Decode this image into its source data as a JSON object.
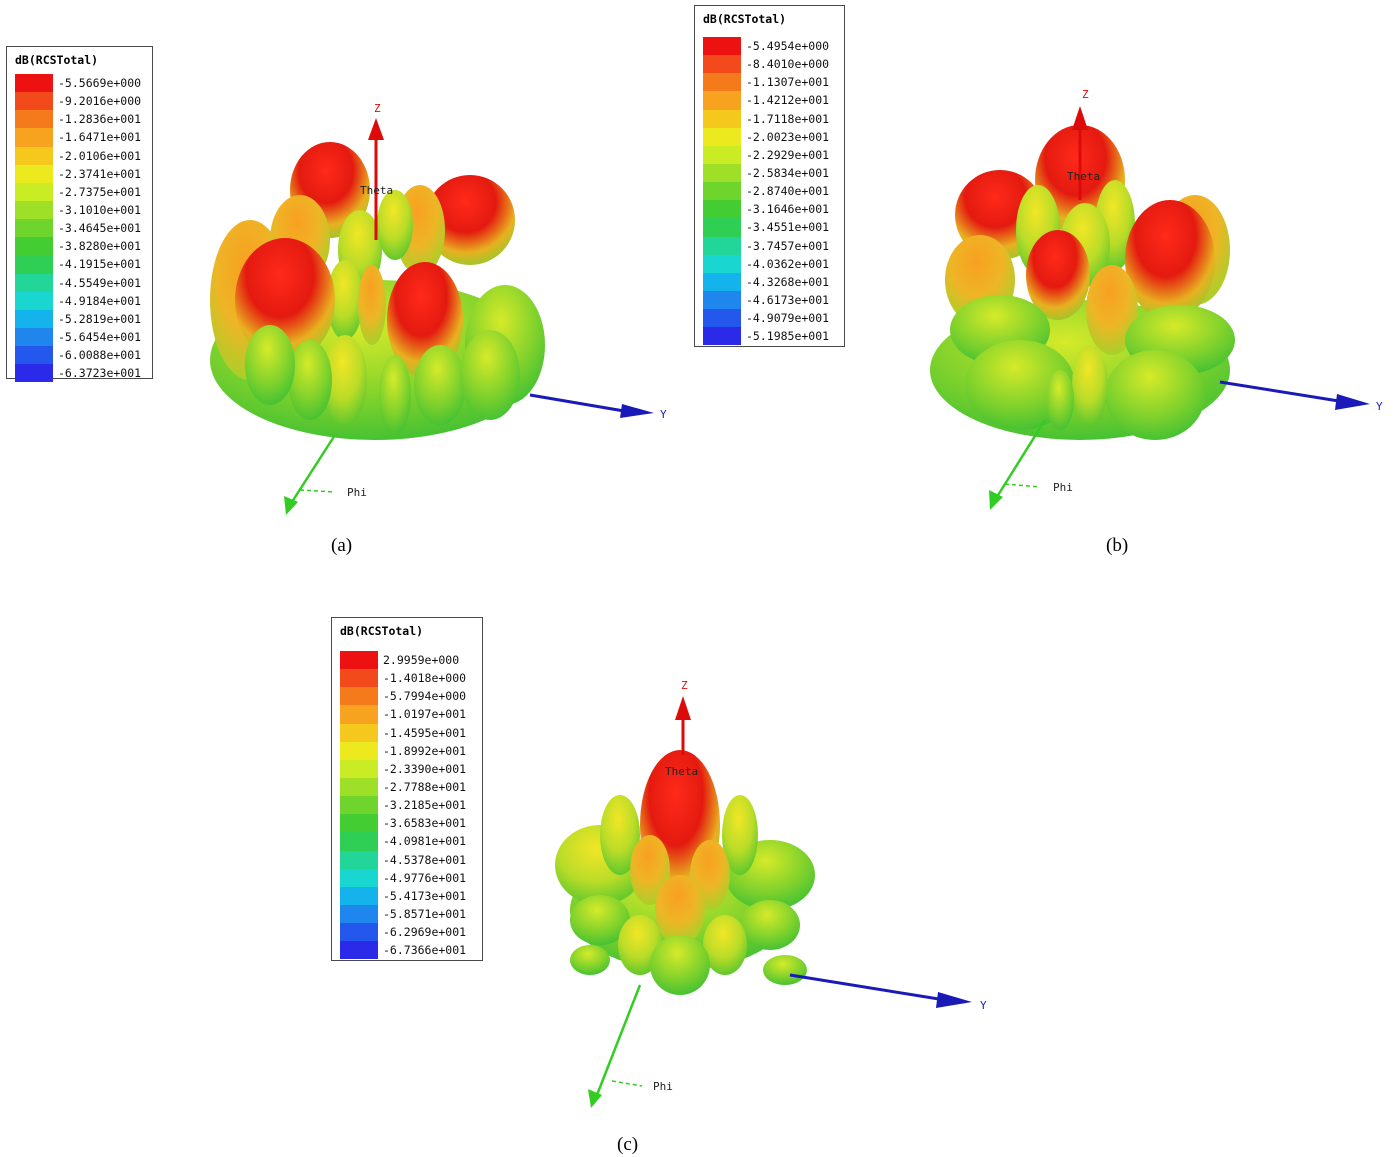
{
  "chart_data": [
    {
      "type": "3d-radiation-pattern",
      "panel": "(a)",
      "legend_title": "dB(RCSTotal)",
      "colorscale_values": [
        "-5.5669e+000",
        "-9.2016e+000",
        "-1.2836e+001",
        "-1.6471e+001",
        "-2.0106e+001",
        "-2.3741e+001",
        "-2.7375e+001",
        "-3.1010e+001",
        "-3.4645e+001",
        "-3.8280e+001",
        "-4.1915e+001",
        "-4.5549e+001",
        "-4.9184e+001",
        "-5.2819e+001",
        "-5.6454e+001",
        "-6.0088e+001",
        "-6.3723e+001"
      ],
      "axes": {
        "z": "Z",
        "y": "Y",
        "theta": "Theta",
        "phi": "Phi"
      }
    },
    {
      "type": "3d-radiation-pattern",
      "panel": "(b)",
      "legend_title": "dB(RCSTotal)",
      "colorscale_values": [
        "-5.4954e+000",
        "-8.4010e+000",
        "-1.1307e+001",
        "-1.4212e+001",
        "-1.7118e+001",
        "-2.0023e+001",
        "-2.2929e+001",
        "-2.5834e+001",
        "-2.8740e+001",
        "-3.1646e+001",
        "-3.4551e+001",
        "-3.7457e+001",
        "-4.0362e+001",
        "-4.3268e+001",
        "-4.6173e+001",
        "-4.9079e+001",
        "-5.1985e+001"
      ],
      "axes": {
        "z": "Z",
        "y": "Y",
        "theta": "Theta",
        "phi": "Phi"
      }
    },
    {
      "type": "3d-radiation-pattern",
      "panel": "(c)",
      "legend_title": "dB(RCSTotal)",
      "colorscale_values": [
        "2.9959e+000",
        "-1.4018e+000",
        "-5.7994e+000",
        "-1.0197e+001",
        "-1.4595e+001",
        "-1.8992e+001",
        "-2.3390e+001",
        "-2.7788e+001",
        "-3.2185e+001",
        "-3.6583e+001",
        "-4.0981e+001",
        "-4.5378e+001",
        "-4.9776e+001",
        "-5.4173e+001",
        "-5.8571e+001",
        "-6.2969e+001",
        "-6.7366e+001"
      ],
      "axes": {
        "z": "Z",
        "y": "Y",
        "theta": "Theta",
        "phi": "Phi"
      }
    }
  ],
  "colors": {
    "scale": [
      "#ee1111",
      "#f24a1a",
      "#f57a1c",
      "#f7a31f",
      "#f5c81e",
      "#ecea1f",
      "#c9ec24",
      "#9ee028",
      "#6fd42c",
      "#44cc33",
      "#2fcf55",
      "#22d69a",
      "#1ad6d0",
      "#15b3ec",
      "#1f86ee",
      "#2458ec",
      "#2a2ae8"
    ],
    "z_axis": "#dd0a0a",
    "y_axis": "#1a1ab8",
    "phi_axis": "#33cc22"
  }
}
